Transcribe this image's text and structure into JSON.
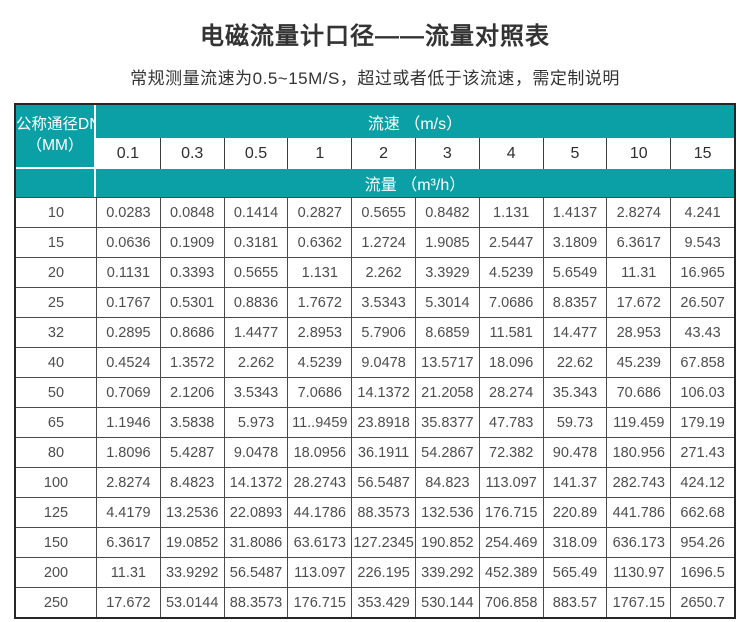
{
  "page": {
    "title": "电磁流量计口径——流量对照表",
    "subtitle": "常规测量流速为0.5~15M/S，超过或者低于该流速，需定制说明"
  },
  "table": {
    "corner_header_line1": "公称通径DN",
    "corner_header_line2": "（MM）",
    "velocity_band_label": "流速 （m/s）",
    "flow_band_label": "流量 （m³/h）",
    "velocities": [
      "0.1",
      "0.3",
      "0.5",
      "1",
      "2",
      "3",
      "4",
      "5",
      "10",
      "15"
    ],
    "rows": [
      {
        "dn": "10",
        "values": [
          "0.0283",
          "0.0848",
          "0.1414",
          "0.2827",
          "0.5655",
          "0.8482",
          "1.131",
          "1.4137",
          "2.8274",
          "4.241"
        ]
      },
      {
        "dn": "15",
        "values": [
          "0.0636",
          "0.1909",
          "0.3181",
          "0.6362",
          "1.2724",
          "1.9085",
          "2.5447",
          "3.1809",
          "6.3617",
          "9.543"
        ]
      },
      {
        "dn": "20",
        "values": [
          "0.1131",
          "0.3393",
          "0.5655",
          "1.131",
          "2.262",
          "3.3929",
          "4.5239",
          "5.6549",
          "11.31",
          "16.965"
        ]
      },
      {
        "dn": "25",
        "values": [
          "0.1767",
          "0.5301",
          "0.8836",
          "1.7672",
          "3.5343",
          "5.3014",
          "7.0686",
          "8.8357",
          "17.672",
          "26.507"
        ]
      },
      {
        "dn": "32",
        "values": [
          "0.2895",
          "0.8686",
          "1.4477",
          "2.8953",
          "5.7906",
          "8.6859",
          "11.581",
          "14.477",
          "28.953",
          "43.43"
        ]
      },
      {
        "dn": "40",
        "values": [
          "0.4524",
          "1.3572",
          "2.262",
          "4.5239",
          "9.0478",
          "13.5717",
          "18.096",
          "22.62",
          "45.239",
          "67.858"
        ]
      },
      {
        "dn": "50",
        "values": [
          "0.7069",
          "2.1206",
          "3.5343",
          "7.0686",
          "14.1372",
          "21.2058",
          "28.274",
          "35.343",
          "70.686",
          "106.03"
        ]
      },
      {
        "dn": "65",
        "values": [
          "1.1946",
          "3.5838",
          "5.973",
          "11..9459",
          "23.8918",
          "35.8377",
          "47.783",
          "59.73",
          "119.459",
          "179.19"
        ]
      },
      {
        "dn": "80",
        "values": [
          "1.8096",
          "5.4287",
          "9.0478",
          "18.0956",
          "36.1911",
          "54.2867",
          "72.382",
          "90.478",
          "180.956",
          "271.43"
        ]
      },
      {
        "dn": "100",
        "values": [
          "2.8274",
          "8.4823",
          "14.1372",
          "28.2743",
          "56.5487",
          "84.823",
          "113.097",
          "141.37",
          "282.743",
          "424.12"
        ]
      },
      {
        "dn": "125",
        "values": [
          "4.4179",
          "13.2536",
          "22.0893",
          "44.1786",
          "88.3573",
          "132.536",
          "176.715",
          "220.89",
          "441.786",
          "662.68"
        ]
      },
      {
        "dn": "150",
        "values": [
          "6.3617",
          "19.0852",
          "31.8086",
          "63.6173",
          "127.2345",
          "190.852",
          "254.469",
          "318.09",
          "636.173",
          "954.26"
        ]
      },
      {
        "dn": "200",
        "values": [
          "11.31",
          "33.9292",
          "56.5487",
          "113.097",
          "226.195",
          "339.292",
          "452.389",
          "565.49",
          "1130.97",
          "1696.5"
        ]
      },
      {
        "dn": "250",
        "values": [
          "17.672",
          "53.0144",
          "88.3573",
          "176.715",
          "353.429",
          "530.144",
          "706.858",
          "883.57",
          "1767.15",
          "2650.7"
        ]
      }
    ]
  },
  "colors": {
    "teal_header": "#0aa0a6",
    "outer_border": "#262626",
    "grid_line": "#4a4a4a",
    "title_text": "#333333",
    "data_text": "#4d4d4d"
  }
}
